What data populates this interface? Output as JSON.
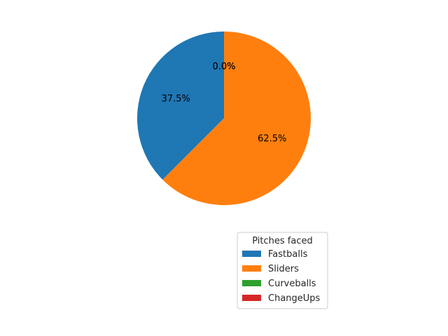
{
  "chart_data": {
    "type": "pie",
    "categories": [
      "Fastballs",
      "Sliders",
      "Curveballs",
      "ChangeUps"
    ],
    "values": [
      37.5,
      62.5,
      0.0,
      0.0
    ],
    "percent_labels": [
      "37.5%",
      "62.5%",
      "0.0%",
      "0.0%"
    ],
    "colors": [
      "#1f77b4",
      "#ff7f0e",
      "#2ca02c",
      "#d62728"
    ],
    "start_angle_deg": 90,
    "direction": "counterclockwise",
    "legend": {
      "title": "Pitches faced",
      "entries": [
        "Fastballs",
        "Sliders",
        "Curveballs",
        "ChangeUps"
      ],
      "placement": "lower-right"
    },
    "title": ""
  }
}
